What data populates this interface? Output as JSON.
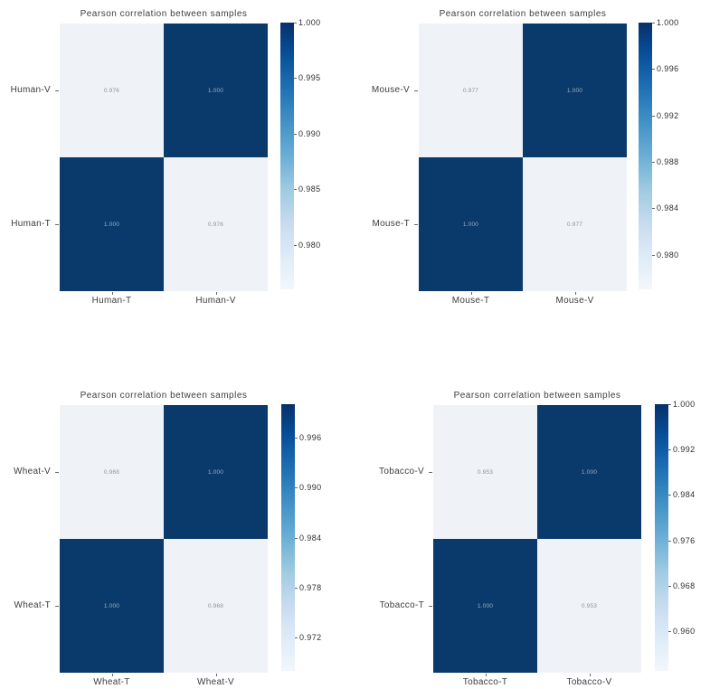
{
  "page": {
    "background": "#ffffff"
  },
  "figures": [
    {
      "name": "human",
      "title": "Pearson correlation between samples",
      "rows": [
        "Human-V",
        "Human-T"
      ],
      "cols": [
        "Human-T",
        "Human-V"
      ],
      "cell_labels": [
        [
          "0.976",
          "1.000"
        ],
        [
          "1.000",
          "0.976"
        ]
      ],
      "colorbar": {
        "vmin": 0.976,
        "vmax": 1.0,
        "ticks": [
          "1.000",
          "0.995",
          "0.990",
          "0.985",
          "0.980"
        ]
      }
    },
    {
      "name": "mouse",
      "title": "Pearson correlation between samples",
      "rows": [
        "Mouse-V",
        "Mouse-T"
      ],
      "cols": [
        "Mouse-T",
        "Mouse-V"
      ],
      "cell_labels": [
        [
          "0.977",
          "1.000"
        ],
        [
          "1.000",
          "0.977"
        ]
      ],
      "colorbar": {
        "vmin": 0.977,
        "vmax": 1.0,
        "ticks": [
          "1.000",
          "0.996",
          "0.992",
          "0.988",
          "0.984",
          "0.980"
        ]
      }
    },
    {
      "name": "wheat",
      "title": "Pearson correlation between samples",
      "rows": [
        "Wheat-V",
        "Wheat-T"
      ],
      "cols": [
        "Wheat-T",
        "Wheat-V"
      ],
      "cell_labels": [
        [
          "0.968",
          "1.000"
        ],
        [
          "1.000",
          "0.968"
        ]
      ],
      "colorbar": {
        "vmin": 0.968,
        "vmax": 1.0,
        "ticks": [
          "0.996",
          "0.990",
          "0.984",
          "0.978",
          "0.972"
        ]
      }
    },
    {
      "name": "tobacco",
      "title": "Pearson correlation between samples",
      "rows": [
        "Tobacco-V",
        "Tobacco-T"
      ],
      "cols": [
        "Tobacco-T",
        "Tobacco-V"
      ],
      "cell_labels": [
        [
          "0.953",
          "1.000"
        ],
        [
          "1.000",
          "0.953"
        ]
      ],
      "colorbar": {
        "vmin": 0.953,
        "vmax": 1.0,
        "ticks": [
          "1.000",
          "0.992",
          "0.984",
          "0.976",
          "0.968",
          "0.960"
        ]
      }
    }
  ],
  "colors": {
    "cell_max": "#0a3a6b",
    "cell_min": "#eff3f8",
    "colormap": "Blues",
    "label_text": "#3d3d3d"
  },
  "chart_data": [
    {
      "type": "heatmap",
      "title": "Pearson correlation between samples",
      "x_categories": [
        "Human-T",
        "Human-V"
      ],
      "y_categories": [
        "Human-V",
        "Human-T"
      ],
      "values": [
        [
          0.976,
          1.0
        ],
        [
          1.0,
          0.976
        ]
      ],
      "colormap": "Blues",
      "colorbar_range": [
        0.976,
        1.0
      ],
      "colorbar_ticks": [
        1.0,
        0.995,
        0.99,
        0.985,
        0.98
      ],
      "legend_position": "right-colorbar",
      "grid": false
    },
    {
      "type": "heatmap",
      "title": "Pearson correlation between samples",
      "x_categories": [
        "Mouse-T",
        "Mouse-V"
      ],
      "y_categories": [
        "Mouse-V",
        "Mouse-T"
      ],
      "values": [
        [
          0.977,
          1.0
        ],
        [
          1.0,
          0.977
        ]
      ],
      "colormap": "Blues",
      "colorbar_range": [
        0.977,
        1.0
      ],
      "colorbar_ticks": [
        1.0,
        0.996,
        0.992,
        0.988,
        0.984,
        0.98
      ],
      "legend_position": "right-colorbar",
      "grid": false
    },
    {
      "type": "heatmap",
      "title": "Pearson correlation between samples",
      "x_categories": [
        "Wheat-T",
        "Wheat-V"
      ],
      "y_categories": [
        "Wheat-V",
        "Wheat-T"
      ],
      "values": [
        [
          0.968,
          1.0
        ],
        [
          1.0,
          0.968
        ]
      ],
      "colormap": "Blues",
      "colorbar_range": [
        0.968,
        1.0
      ],
      "colorbar_ticks": [
        0.996,
        0.99,
        0.984,
        0.978,
        0.972
      ],
      "legend_position": "right-colorbar",
      "grid": false
    },
    {
      "type": "heatmap",
      "title": "Pearson correlation between samples",
      "x_categories": [
        "Tobacco-T",
        "Tobacco-V"
      ],
      "y_categories": [
        "Tobacco-V",
        "Tobacco-T"
      ],
      "values": [
        [
          0.953,
          1.0
        ],
        [
          1.0,
          0.953
        ]
      ],
      "colormap": "Blues",
      "colorbar_range": [
        0.953,
        1.0
      ],
      "colorbar_ticks": [
        1.0,
        0.992,
        0.984,
        0.976,
        0.968,
        0.96
      ],
      "legend_position": "right-colorbar",
      "grid": false
    }
  ]
}
